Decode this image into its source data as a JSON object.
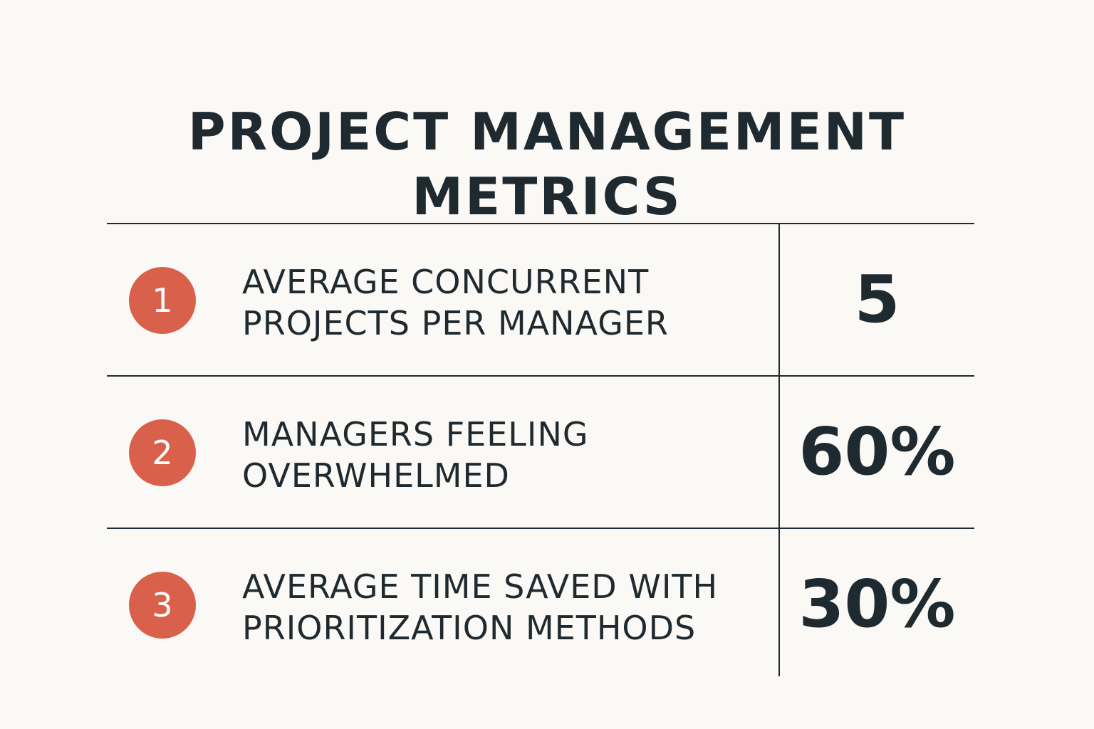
{
  "title": {
    "line1": "PROJECT MANAGEMENT",
    "line2": "METRICS"
  },
  "colors": {
    "background": "#fbf9f5",
    "text": "#1f2a30",
    "badge": "#d9614c"
  },
  "metrics": [
    {
      "number": "1",
      "label_line1": "AVERAGE CONCURRENT",
      "label_line2": "PROJECTS PER MANAGER",
      "value": "5"
    },
    {
      "number": "2",
      "label_line1": "MANAGERS FEELING",
      "label_line2": "OVERWHELMED",
      "value": "60%"
    },
    {
      "number": "3",
      "label_line1": "AVERAGE TIME SAVED WITH",
      "label_line2": "PRIORITIZATION METHODS",
      "value": "30%"
    }
  ]
}
